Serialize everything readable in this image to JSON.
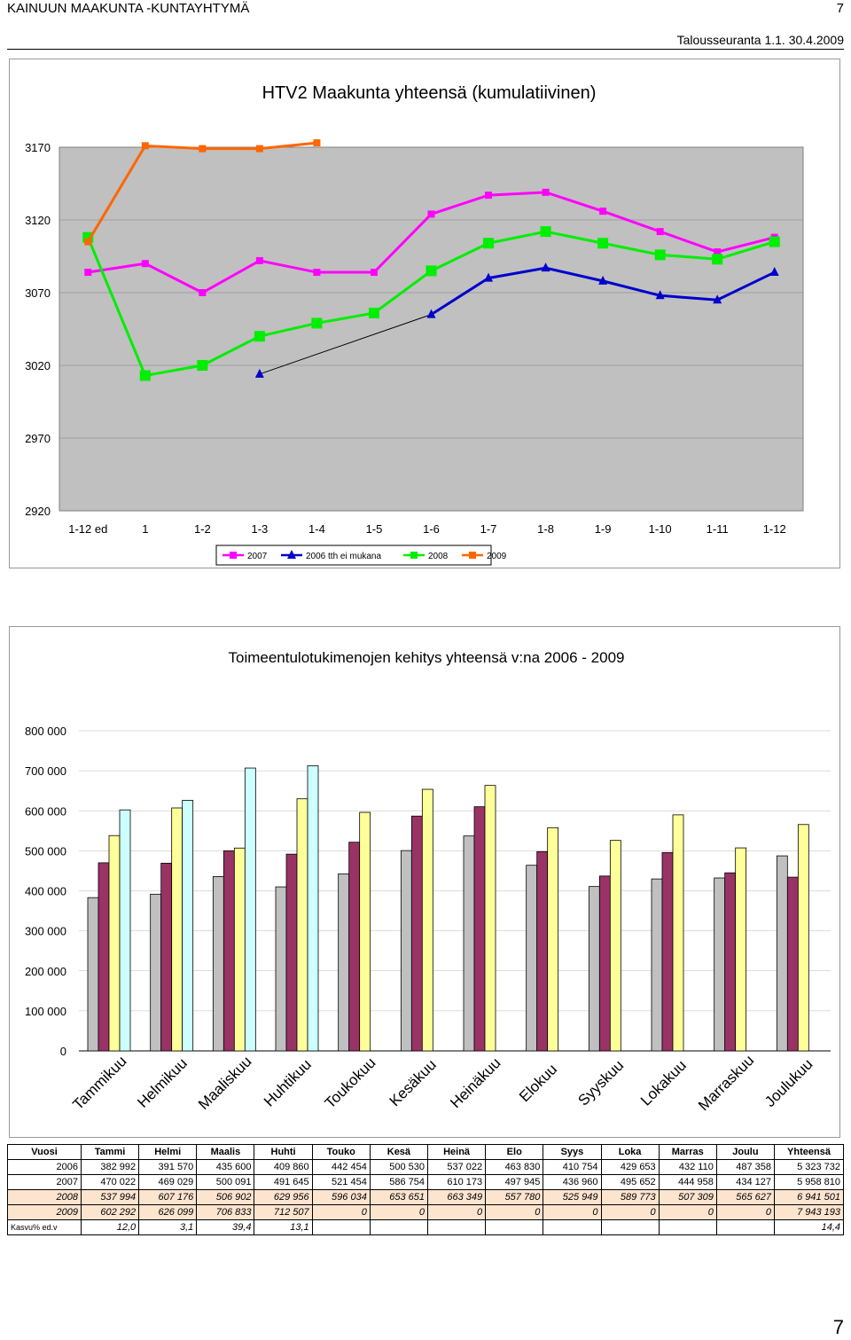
{
  "header": {
    "org": "KAINUUN MAAKUNTA -KUNTAYHTYMÄ",
    "page": "7",
    "period": "Talousseuranta 1.1. 30.4.2009"
  },
  "chart_data": [
    {
      "type": "line",
      "title": "HTV2 Maakunta yhteensä (kumulatiivinen)",
      "categories": [
        "1-12 ed",
        "1",
        "1-2",
        "1-3",
        "1-4",
        "1-5",
        "1-6",
        "1-7",
        "1-8",
        "1-9",
        "1-10",
        "1-11",
        "1-12"
      ],
      "ylim": [
        2920,
        3170
      ],
      "yticks": [
        "3170",
        "3120",
        "3070",
        "3020",
        "2970",
        "2920"
      ],
      "legend_position": "bottom",
      "series": [
        {
          "name": "2007",
          "color": "#ff00ff",
          "marker": "square",
          "values": [
            3084,
            3090,
            3070,
            3092,
            3084,
            3084,
            3124,
            3137,
            3139,
            3126,
            3112,
            3098,
            3108
          ]
        },
        {
          "name": "2006 tth ei mukana",
          "color": "#0000cc",
          "marker": "triangle",
          "values": [
            null,
            null,
            null,
            3014,
            null,
            null,
            3055,
            3080,
            3087,
            3078,
            3068,
            3065,
            3084
          ]
        },
        {
          "name": "2008",
          "color": "#00ee00",
          "marker": "square",
          "values": [
            3108,
            3013,
            3020,
            3040,
            3049,
            3056,
            3085,
            3104,
            3112,
            3104,
            3096,
            3093,
            3105
          ]
        },
        {
          "name": "2009",
          "color": "#ff6600",
          "marker": "square",
          "values": [
            3105,
            3171,
            3169,
            3169,
            3173,
            null,
            null,
            null,
            null,
            null,
            null,
            null,
            null
          ]
        }
      ]
    },
    {
      "type": "bar",
      "title": "Toimeentulotukimenojen kehitys yhteensä v:na 2006 - 2009",
      "categories": [
        "Tammikuu",
        "Helmikuu",
        "Maaliskuu",
        "Huhtikuu",
        "Toukokuu",
        "Kesäkuu",
        "Heinäkuu",
        "Elokuu",
        "Syyskuu",
        "Lokakuu",
        "Marraskuu",
        "Joulukuu"
      ],
      "ylim": [
        0,
        800000
      ],
      "yticks": [
        "800 000",
        "700 000",
        "600 000",
        "500 000",
        "400 000",
        "300 000",
        "200 000",
        "100 000",
        "0"
      ],
      "series": [
        {
          "color": "#c0c0c0",
          "values": [
            382992,
            391570,
            435600,
            409860,
            442454,
            500530,
            537022,
            463830,
            410754,
            429653,
            432110,
            487358
          ]
        },
        {
          "color": "#993366",
          "values": [
            470022,
            469029,
            500091,
            491645,
            521454,
            586754,
            610173,
            497945,
            436960,
            495652,
            444958,
            434127
          ]
        },
        {
          "color": "#ffff99",
          "values": [
            537994,
            607176,
            506902,
            629956,
            596034,
            653651,
            663349,
            557780,
            525949,
            589773,
            507309,
            565627
          ]
        },
        {
          "color": "#ccffff",
          "values": [
            602292,
            626099,
            706833,
            712507,
            0,
            0,
            0,
            0,
            0,
            0,
            0,
            0
          ]
        }
      ]
    }
  ],
  "table": {
    "headers": [
      "Vuosi",
      "Tammi",
      "Helmi",
      "Maalis",
      "Huhti",
      "Touko",
      "Kesä",
      "Heinä",
      "Elo",
      "Syys",
      "Loka",
      "Marras",
      "Joulu",
      "Yhteensä"
    ],
    "rows": [
      [
        "2006",
        "382 992",
        "391 570",
        "435 600",
        "409 860",
        "442 454",
        "500 530",
        "537 022",
        "463 830",
        "410 754",
        "429 653",
        "432 110",
        "487 358",
        "5 323 732"
      ],
      [
        "2007",
        "470 022",
        "469 029",
        "500 091",
        "491 645",
        "521 454",
        "586 754",
        "610 173",
        "497 945",
        "436 960",
        "495 652",
        "444 958",
        "434 127",
        "5 958 810"
      ],
      [
        "2008",
        "537 994",
        "607 176",
        "506 902",
        "629 956",
        "596 034",
        "653 651",
        "663 349",
        "557 780",
        "525 949",
        "589 773",
        "507 309",
        "565 627",
        "6 941 501"
      ],
      [
        "2009",
        "602 292",
        "626 099",
        "706 833",
        "712 507",
        "0",
        "0",
        "0",
        "0",
        "0",
        "0",
        "0",
        "0",
        "7 943 193"
      ],
      [
        "Kasvu% ed.v",
        "12,0",
        "3,1",
        "39,4",
        "13,1",
        "",
        "",
        "",
        "",
        "",
        "",
        "",
        "",
        "14,4"
      ]
    ]
  },
  "footer": {
    "page": "7"
  }
}
